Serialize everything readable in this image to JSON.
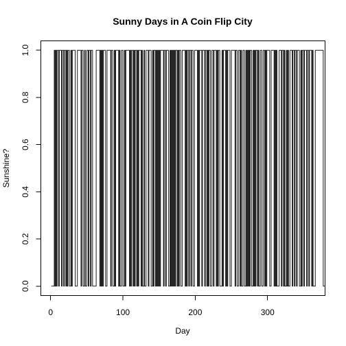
{
  "chart_data": {
    "type": "line",
    "line_style": "step",
    "title": "Sunny Days in A Coin Flip City",
    "xlabel": "Day",
    "ylabel": "Sunshine?",
    "xlim": [
      1,
      365
    ],
    "ylim": [
      0,
      1
    ],
    "xticks": [
      0,
      100,
      200,
      300
    ],
    "yticks": [
      0.0,
      0.2,
      0.4,
      0.6,
      0.8,
      1.0
    ],
    "xtick_labels": [
      "0",
      "100",
      "200",
      "300"
    ],
    "ytick_labels": [
      "0.0",
      "0.2",
      "0.4",
      "0.6",
      "0.8",
      "1.0"
    ],
    "grid": false,
    "legend": "none",
    "line_color": "#1a1a1a",
    "series": [
      {
        "x_start": 1,
        "x_step": 1,
        "values": [
          0,
          0,
          0,
          0,
          1,
          0,
          1,
          0,
          1,
          1,
          0,
          1,
          1,
          1,
          0,
          1,
          1,
          0,
          1,
          1,
          0,
          1,
          0,
          1,
          1,
          0,
          0,
          1,
          0,
          1,
          1,
          1,
          1,
          0,
          0,
          0,
          1,
          1,
          1,
          1,
          1,
          0,
          1,
          1,
          0,
          0,
          1,
          0,
          0,
          1,
          1,
          0,
          1,
          1,
          0,
          1,
          1,
          0,
          0,
          0,
          0,
          0,
          1,
          1,
          1,
          1,
          1,
          0,
          1,
          0,
          1,
          0,
          1,
          1,
          1,
          0,
          0,
          1,
          1,
          1,
          1,
          1,
          0,
          1,
          1,
          0,
          0,
          1,
          0,
          1,
          1,
          1,
          1,
          0,
          1,
          0,
          0,
          1,
          1,
          0,
          0,
          1,
          0,
          1,
          1,
          1,
          1,
          1,
          0,
          1,
          0,
          1,
          1,
          0,
          1,
          0,
          1,
          1,
          0,
          1,
          0,
          1,
          1,
          1,
          0,
          1,
          0,
          0,
          1,
          0,
          0,
          1,
          1,
          1,
          0,
          1,
          1,
          1,
          0,
          0,
          1,
          0,
          1,
          1,
          0,
          1,
          0,
          1,
          0,
          1,
          0,
          1,
          1,
          1,
          1,
          0,
          1,
          1,
          0,
          1,
          1,
          1,
          0,
          0,
          1,
          0,
          1,
          0,
          1,
          0,
          1,
          0,
          1,
          1,
          0,
          1,
          0,
          1,
          1,
          0,
          0,
          1,
          1,
          1,
          1,
          0,
          1,
          0,
          1,
          1,
          0,
          1,
          1,
          0,
          1,
          1,
          0,
          0,
          1,
          1,
          1,
          1,
          0,
          1,
          0,
          1,
          1,
          1,
          0,
          1,
          1,
          1,
          0,
          1,
          1,
          0,
          1,
          0,
          1,
          1,
          0,
          0,
          1,
          1,
          0,
          1,
          1,
          1,
          0,
          1,
          0,
          1,
          1,
          0,
          0,
          0,
          1,
          0,
          1,
          1,
          1,
          0,
          1,
          0,
          1,
          1,
          1,
          0,
          0,
          1,
          1,
          1,
          1,
          1,
          0,
          1,
          1,
          0,
          0,
          1,
          1,
          0,
          1,
          0,
          0,
          1,
          1,
          0,
          0,
          1,
          0,
          1,
          0,
          1,
          0,
          1,
          1,
          0,
          0,
          1,
          0,
          1,
          0,
          1,
          1,
          0,
          1,
          0,
          0,
          1,
          1,
          0,
          0,
          1,
          1,
          0,
          1,
          0,
          1,
          1,
          1,
          1,
          0,
          0,
          1,
          1,
          1,
          1,
          0,
          1,
          0,
          1,
          0,
          0,
          0,
          1,
          1,
          1,
          0,
          1,
          1,
          0,
          1,
          0,
          0,
          1,
          0,
          1,
          0,
          0,
          1,
          1,
          1,
          0,
          1,
          1,
          0,
          1,
          1,
          0,
          1,
          1,
          1,
          0,
          0,
          1,
          0,
          1,
          1,
          0,
          1,
          1,
          1,
          0,
          1,
          1,
          0,
          1,
          1,
          1,
          0,
          1,
          0,
          0,
          0,
          1,
          1,
          1,
          1,
          1,
          1,
          1,
          1,
          1,
          1,
          1,
          0,
          0,
          0
        ]
      }
    ]
  }
}
